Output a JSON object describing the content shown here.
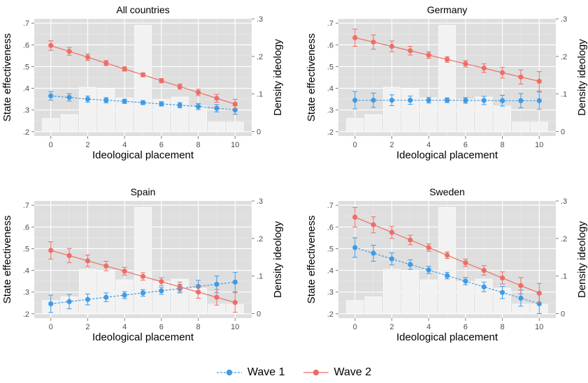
{
  "chart_data": {
    "type": "line",
    "x_ticks": [
      "0",
      "2",
      "4",
      "6",
      "8",
      "10"
    ],
    "y_ticks_left": [
      ".2",
      ".3",
      ".4",
      ".5",
      ".6",
      ".7"
    ],
    "y_ticks_right": [
      "0",
      ".1",
      ".2",
      ".3"
    ],
    "ylim_left": [
      0.18,
      0.72
    ],
    "ylim_right": [
      -0.012,
      0.3
    ],
    "xlim": [
      -0.9,
      10.9
    ],
    "colors": {
      "wave1": "#3E9BE6",
      "wave2": "#EE6E66",
      "panel_bg": "#DEDEDE",
      "grid": "#FFFFFF",
      "bar_fill": "#F2F2F2"
    },
    "legend": {
      "placement": "bottom",
      "items": [
        {
          "label": "Wave 1",
          "color": "#3E9BE6",
          "linestyle": "dashed"
        },
        {
          "label": "Wave 2",
          "color": "#EE6E66",
          "linestyle": "solid"
        }
      ]
    },
    "panels": [
      {
        "title": "All countries",
        "xlabel": "Ideological placement",
        "ylabel": "State effectiveness",
        "ylabel_right": "Density ideology",
        "x": [
          0,
          1,
          2,
          3,
          4,
          5,
          6,
          7,
          8,
          9,
          10
        ],
        "density": [
          0.035,
          0.045,
          0.118,
          0.113,
          0.09,
          0.283,
          0.085,
          0.092,
          0.068,
          0.025,
          0.025
        ],
        "series": [
          {
            "name": "Wave 1",
            "values": [
              0.365,
              0.358,
              0.35,
              0.345,
              0.34,
              0.334,
              0.328,
              0.322,
              0.316,
              0.308,
              0.3
            ],
            "err": [
              0.02,
              0.017,
              0.014,
              0.012,
              0.01,
              0.009,
              0.01,
              0.012,
              0.014,
              0.017,
              0.02
            ]
          },
          {
            "name": "Wave 2",
            "values": [
              0.597,
              0.57,
              0.543,
              0.516,
              0.489,
              0.462,
              0.435,
              0.408,
              0.381,
              0.354,
              0.327
            ],
            "err": [
              0.022,
              0.018,
              0.015,
              0.012,
              0.01,
              0.009,
              0.01,
              0.012,
              0.015,
              0.018,
              0.022
            ]
          }
        ]
      },
      {
        "title": "Germany",
        "xlabel": "Ideological placement",
        "ylabel": "State effectiveness",
        "ylabel_right": "Density ideology",
        "x": [
          0,
          1,
          2,
          3,
          4,
          5,
          6,
          7,
          8,
          9,
          10
        ],
        "density": [
          0.035,
          0.045,
          0.118,
          0.113,
          0.09,
          0.283,
          0.085,
          0.092,
          0.068,
          0.025,
          0.025
        ],
        "series": [
          {
            "name": "Wave 1",
            "values": [
              0.345,
              0.345,
              0.345,
              0.345,
              0.345,
              0.345,
              0.344,
              0.344,
              0.343,
              0.343,
              0.343
            ],
            "err": [
              0.04,
              0.033,
              0.025,
              0.019,
              0.013,
              0.011,
              0.013,
              0.019,
              0.025,
              0.033,
              0.04
            ]
          },
          {
            "name": "Wave 2",
            "values": [
              0.633,
              0.613,
              0.593,
              0.573,
              0.553,
              0.533,
              0.513,
              0.493,
              0.472,
              0.452,
              0.432
            ],
            "err": [
              0.04,
              0.033,
              0.025,
              0.02,
              0.015,
              0.013,
              0.015,
              0.02,
              0.025,
              0.033,
              0.045
            ]
          }
        ]
      },
      {
        "title": "Spain",
        "xlabel": "Ideological placement",
        "ylabel": "State effectiveness",
        "ylabel_right": "Density ideology",
        "x": [
          0,
          1,
          2,
          3,
          4,
          5,
          6,
          7,
          8,
          9,
          10
        ],
        "density": [
          0.035,
          0.045,
          0.118,
          0.113,
          0.09,
          0.283,
          0.085,
          0.092,
          0.068,
          0.025,
          0.025
        ],
        "series": [
          {
            "name": "Wave 1",
            "values": [
              0.246,
              0.256,
              0.266,
              0.276,
              0.286,
              0.296,
              0.306,
              0.316,
              0.326,
              0.336,
              0.346
            ],
            "err": [
              0.04,
              0.033,
              0.025,
              0.02,
              0.016,
              0.015,
              0.016,
              0.02,
              0.028,
              0.038,
              0.045
            ]
          },
          {
            "name": "Wave 2",
            "values": [
              0.492,
              0.468,
              0.444,
              0.42,
              0.396,
              0.372,
              0.348,
              0.324,
              0.3,
              0.276,
              0.252
            ],
            "err": [
              0.04,
              0.033,
              0.027,
              0.022,
              0.018,
              0.017,
              0.018,
              0.022,
              0.028,
              0.036,
              0.045
            ]
          }
        ]
      },
      {
        "title": "Sweden",
        "xlabel": "Ideological placement",
        "ylabel": "State effectiveness",
        "ylabel_right": "Density ideology",
        "x": [
          0,
          1,
          2,
          3,
          4,
          5,
          6,
          7,
          8,
          9,
          10
        ],
        "density": [
          0.035,
          0.045,
          0.118,
          0.113,
          0.09,
          0.283,
          0.085,
          0.092,
          0.068,
          0.025,
          0.025
        ],
        "series": [
          {
            "name": "Wave 1",
            "values": [
              0.505,
              0.479,
              0.453,
              0.427,
              0.402,
              0.376,
              0.35,
              0.324,
              0.298,
              0.272,
              0.246
            ],
            "err": [
              0.045,
              0.037,
              0.028,
              0.022,
              0.017,
              0.015,
              0.017,
              0.022,
              0.028,
              0.037,
              0.045
            ]
          },
          {
            "name": "Wave 2",
            "values": [
              0.645,
              0.61,
              0.575,
              0.54,
              0.505,
              0.47,
              0.435,
              0.4,
              0.365,
              0.33,
              0.295
            ],
            "err": [
              0.045,
              0.037,
              0.028,
              0.022,
              0.017,
              0.015,
              0.017,
              0.022,
              0.028,
              0.037,
              0.045
            ]
          }
        ]
      }
    ]
  }
}
